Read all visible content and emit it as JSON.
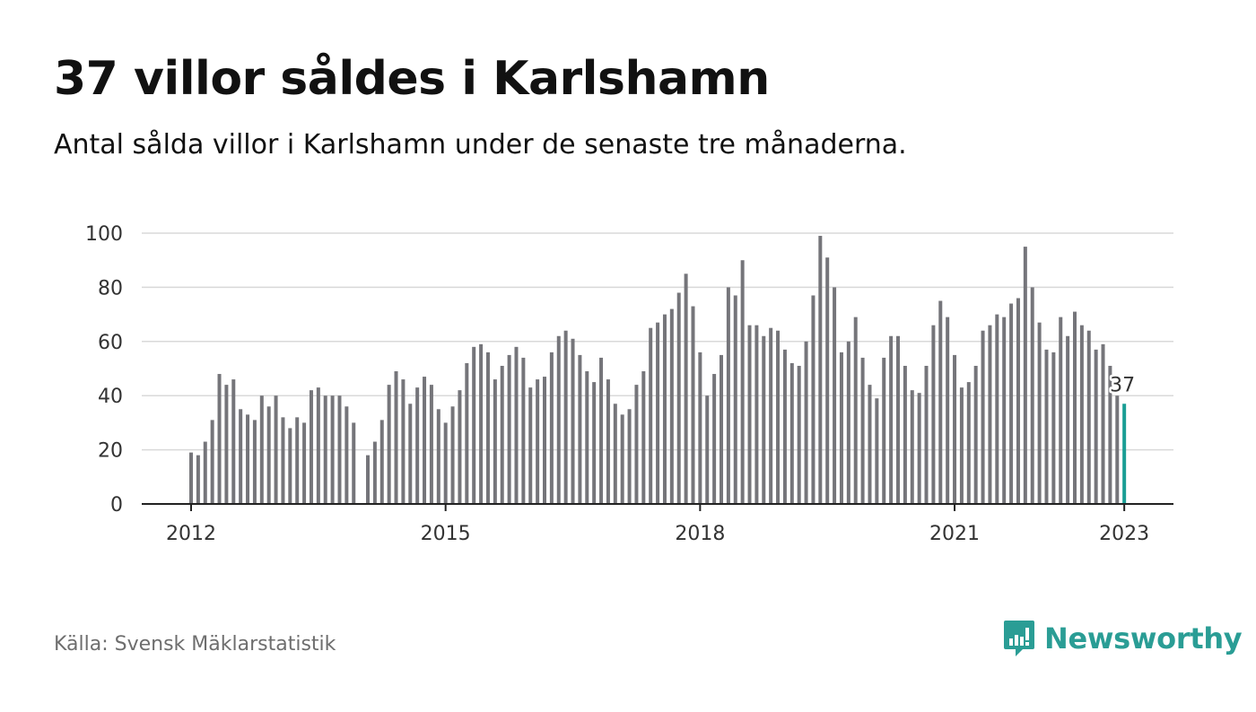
{
  "title": "37 villor såldes i Karlshamn",
  "subtitle": "Antal sålda villor i Karlshamn under de senaste tre månaderna.",
  "source": "Källa: Svensk Mäklarstatistik",
  "brand": {
    "name": "Newsworthy",
    "icon": "newsworthy-logo-icon",
    "color": "#2a9d95"
  },
  "colors": {
    "bar": "#75757a",
    "highlight": "#1a9e95"
  },
  "chart_data": {
    "type": "bar",
    "title": "37 villor såldes i Karlshamn",
    "subtitle": "Antal sålda villor i Karlshamn under de senaste tre månaderna.",
    "xlabel": "",
    "ylabel": "",
    "ylim": [
      0,
      100
    ],
    "yticks": [
      0,
      20,
      40,
      60,
      80,
      100
    ],
    "xticks": [
      "2012",
      "2015",
      "2018",
      "2021",
      "2023"
    ],
    "x_start": "2012-01",
    "x_end": "2023-01",
    "grid": true,
    "highlight_label": "37",
    "series": [
      {
        "values": [
          19,
          18,
          23,
          31,
          48,
          44,
          46,
          35,
          33,
          31,
          40,
          36,
          40,
          32,
          28,
          32,
          30,
          42,
          43,
          40,
          40,
          40,
          36,
          30,
          null,
          18,
          23,
          31,
          44,
          49,
          46,
          37,
          43,
          47,
          44,
          35,
          30,
          36,
          42,
          52,
          58,
          59,
          56,
          46,
          51,
          55,
          58,
          54,
          43,
          46,
          47,
          56,
          62,
          64,
          61,
          55,
          49,
          45,
          54,
          46,
          37,
          33,
          35,
          44,
          49,
          65,
          67,
          70,
          72,
          78,
          85,
          73,
          56,
          40,
          48,
          55,
          80,
          77,
          90,
          66,
          66,
          62,
          65,
          64,
          57,
          52,
          51,
          60,
          77,
          99,
          91,
          80,
          56,
          60,
          69,
          54,
          44,
          39,
          54,
          62,
          62,
          51,
          42,
          41,
          51,
          66,
          75,
          69,
          55,
          43,
          45,
          51,
          64,
          66,
          70,
          69,
          74,
          76,
          95,
          80,
          67,
          57,
          56,
          69,
          62,
          71,
          66,
          64,
          57,
          59,
          51,
          40,
          37
        ]
      }
    ]
  }
}
